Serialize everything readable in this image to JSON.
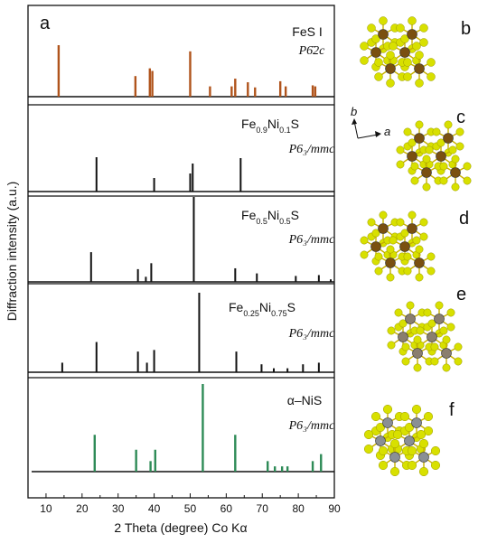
{
  "panel_letters": {
    "main": "a",
    "b": "b",
    "c": "c",
    "d": "d",
    "e": "e",
    "f": "f"
  },
  "xlabel": "2 Theta (degree) Co Kα",
  "ylabel": "Diffraction intensity (a.u.)",
  "lattice_axes": {
    "a": "a",
    "b": "b"
  },
  "colors": {
    "FeS": "#b0541c",
    "black": "#111111",
    "NiS": "#2e8b57",
    "sulfur": "#d8e000",
    "iron": "#7a5010",
    "nickel": "#8a8f94"
  },
  "chart_data": {
    "type": "bar",
    "xlabel": "2 Theta (degree) Co Kα",
    "ylabel": "Diffraction intensity (a.u.)",
    "xlim": [
      5,
      90
    ],
    "xticks": [
      10,
      20,
      30,
      40,
      50,
      60,
      70,
      80,
      90
    ],
    "grid": false,
    "panels": [
      {
        "name": "FeS I",
        "space_group": "P6̄2c",
        "color": "#b0541c",
        "peaks": [
          {
            "x": 13.5,
            "y": 1.0
          },
          {
            "x": 34.8,
            "y": 0.4
          },
          {
            "x": 38.8,
            "y": 0.55
          },
          {
            "x": 39.5,
            "y": 0.5
          },
          {
            "x": 50.0,
            "y": 0.88
          },
          {
            "x": 55.5,
            "y": 0.2
          },
          {
            "x": 61.5,
            "y": 0.2
          },
          {
            "x": 62.5,
            "y": 0.35
          },
          {
            "x": 66.0,
            "y": 0.28
          },
          {
            "x": 68.0,
            "y": 0.18
          },
          {
            "x": 75.0,
            "y": 0.3
          },
          {
            "x": 76.5,
            "y": 0.2
          },
          {
            "x": 84.0,
            "y": 0.22
          },
          {
            "x": 84.7,
            "y": 0.2
          }
        ]
      },
      {
        "name": "Fe0.9Ni0.1S",
        "formula": [
          [
            "Fe",
            ""
          ],
          [
            "0.9",
            "sub"
          ],
          [
            "Ni",
            ""
          ],
          [
            "0.1",
            "sub"
          ],
          [
            "S",
            ""
          ]
        ],
        "space_group": "P6₃/mmc",
        "color": "#111111",
        "peaks": [
          {
            "x": 24.0,
            "y": 0.38
          },
          {
            "x": 40.0,
            "y": 0.15
          },
          {
            "x": 50.0,
            "y": 0.2
          },
          {
            "x": 50.7,
            "y": 0.31
          },
          {
            "x": 64.0,
            "y": 0.37
          }
        ]
      },
      {
        "name": "Fe0.5Ni0.5S",
        "formula": [
          [
            "Fe",
            ""
          ],
          [
            "0.5",
            "sub"
          ],
          [
            "Ni",
            ""
          ],
          [
            "0.5",
            "sub"
          ],
          [
            "S",
            ""
          ]
        ],
        "space_group": "P6₃/mmc",
        "color": "#111111",
        "peaks": [
          {
            "x": 22.5,
            "y": 0.35
          },
          {
            "x": 35.5,
            "y": 0.15
          },
          {
            "x": 37.7,
            "y": 0.06
          },
          {
            "x": 39.2,
            "y": 0.22
          },
          {
            "x": 51.0,
            "y": 1.0
          },
          {
            "x": 62.5,
            "y": 0.16
          },
          {
            "x": 68.5,
            "y": 0.1
          },
          {
            "x": 79.3,
            "y": 0.07
          },
          {
            "x": 85.7,
            "y": 0.08
          },
          {
            "x": 89.0,
            "y": 0.03
          }
        ]
      },
      {
        "name": "Fe0.25Ni0.75S",
        "formula": [
          [
            "Fe",
            ""
          ],
          [
            "0.25",
            "sub"
          ],
          [
            "Ni",
            ""
          ],
          [
            "0.75",
            "sub"
          ],
          [
            "S",
            ""
          ]
        ],
        "space_group": "P6₃/mmc",
        "color": "#111111",
        "peaks": [
          {
            "x": 14.5,
            "y": 0.12
          },
          {
            "x": 24.0,
            "y": 0.38
          },
          {
            "x": 35.5,
            "y": 0.26
          },
          {
            "x": 38.0,
            "y": 0.12
          },
          {
            "x": 40.0,
            "y": 0.28
          },
          {
            "x": 52.5,
            "y": 1.0
          },
          {
            "x": 62.8,
            "y": 0.26
          },
          {
            "x": 69.8,
            "y": 0.1
          },
          {
            "x": 73.2,
            "y": 0.05
          },
          {
            "x": 77.0,
            "y": 0.05
          },
          {
            "x": 81.3,
            "y": 0.1
          },
          {
            "x": 85.7,
            "y": 0.12
          }
        ]
      },
      {
        "name": "α–NiS",
        "space_group": "P6₃/mmc",
        "color": "#2e8b57",
        "peaks": [
          {
            "x": 23.5,
            "y": 0.42
          },
          {
            "x": 35.0,
            "y": 0.25
          },
          {
            "x": 39.0,
            "y": 0.12
          },
          {
            "x": 40.3,
            "y": 0.25
          },
          {
            "x": 53.5,
            "y": 1.0
          },
          {
            "x": 62.5,
            "y": 0.42
          },
          {
            "x": 71.5,
            "y": 0.12
          },
          {
            "x": 73.5,
            "y": 0.06
          },
          {
            "x": 75.5,
            "y": 0.06
          },
          {
            "x": 77.0,
            "y": 0.06
          },
          {
            "x": 84.0,
            "y": 0.12
          },
          {
            "x": 86.3,
            "y": 0.2
          }
        ]
      }
    ]
  }
}
